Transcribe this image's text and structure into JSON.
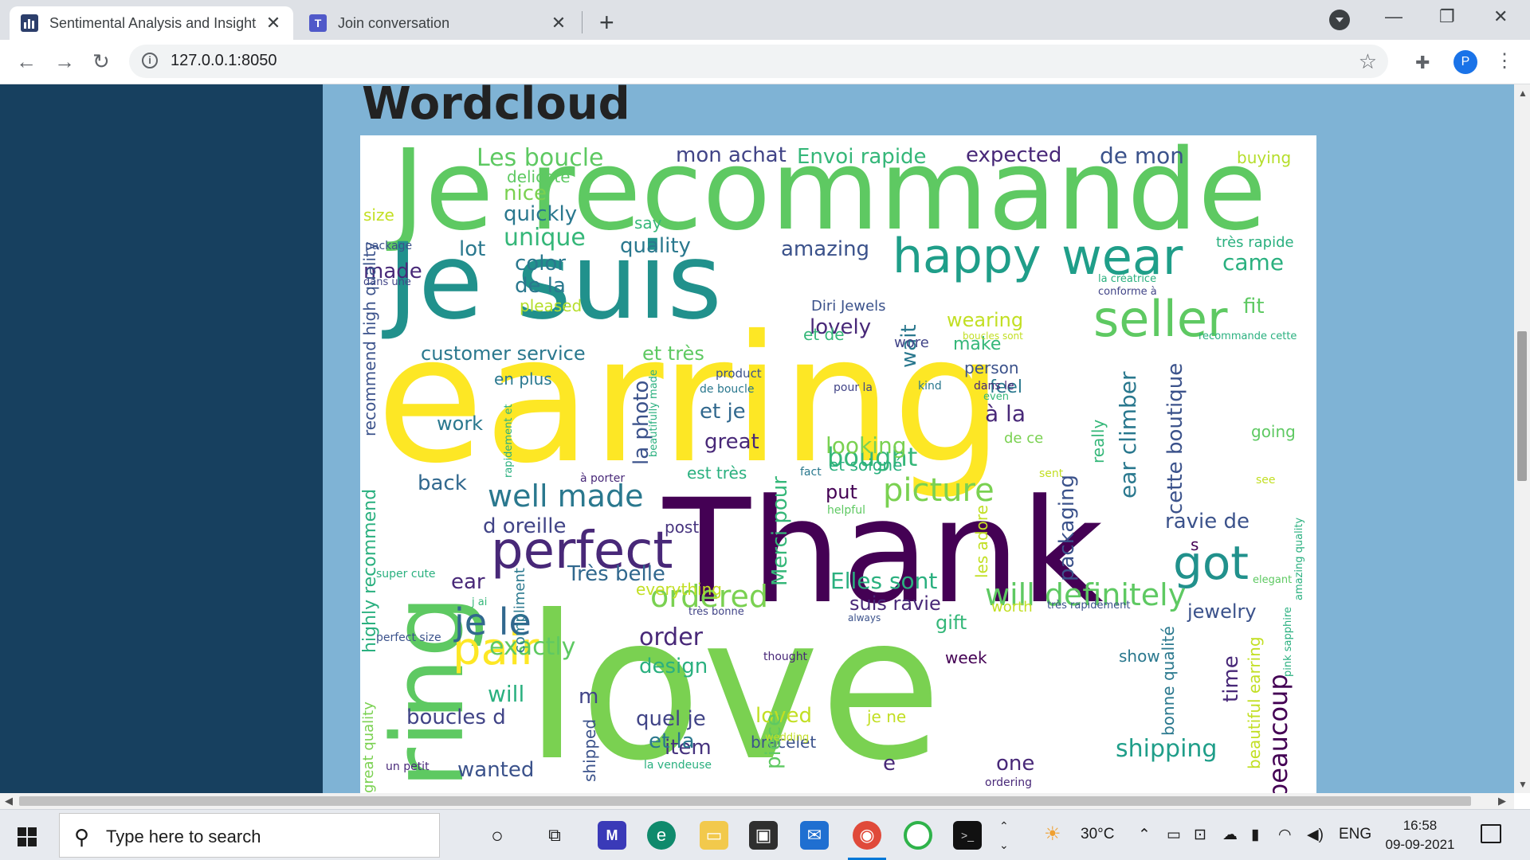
{
  "browser": {
    "tabs": [
      {
        "title": "Sentimental Analysis and Insights",
        "icon": "dash-app-icon"
      },
      {
        "title": "Join conversation",
        "icon": "teams-icon"
      }
    ],
    "url": "127.0.0.1:8050"
  },
  "page": {
    "heading": "Wordcloud",
    "colors": {
      "sidebar": "#17405f",
      "background": "#7fb3d5",
      "cloud_bg": "#ffffff"
    }
  },
  "wordcloud": {
    "words": [
      "Je recommande",
      "Je suis",
      "earring",
      "Thank",
      "love",
      "ring",
      "seller",
      "happy",
      "wear",
      "perfect",
      "pair",
      "got",
      "picture",
      "well made",
      "will definitely",
      "je le",
      "ordered",
      "exactly",
      "order",
      "design",
      "loved",
      "bracelet",
      "item",
      "shipping",
      "beaucoup",
      "Merci pour",
      "piece",
      "bought",
      "great",
      "looking",
      "et je",
      "la photo",
      "wait",
      "work",
      "back",
      "d oreille",
      "post",
      "Très belle",
      "everything",
      "ear",
      "customer service",
      "et très",
      "lovely",
      "Diri Jewels",
      "wearing",
      "make",
      "wore",
      "person",
      "feel",
      "fit",
      "came",
      "très rapide",
      "buying",
      "de mon",
      "expected",
      "Envoi rapide",
      "mon achat",
      "Les boucle",
      "delicate",
      "nice",
      "quickly",
      "unique",
      "quality",
      "amazing",
      "lot",
      "color",
      "de la",
      "pleased",
      "made",
      "size",
      "say",
      "package",
      "dans une",
      "la créatrice",
      "conforme à",
      "boucles sont",
      "recommande cette",
      "et de",
      "product",
      "de boucle",
      "pour la",
      "kind",
      "dans le",
      "even",
      "à la",
      "de ce",
      "going",
      "et soigné",
      "est très",
      "fact",
      "put",
      "helpful",
      "sent",
      "see",
      "cette boutique",
      "ear climber",
      "really",
      "packaging",
      "les adore",
      "ravie de",
      "s",
      "Elles sont",
      "suis ravie",
      "worth",
      "très rapidement",
      "jewelry",
      "gift",
      "always",
      "très bonne",
      "week",
      "thought",
      "show",
      "time",
      "beautiful earring",
      "pink sapphire",
      "amazing quality",
      "elegant",
      "bonne qualité",
      "je ne",
      "wedding",
      "la vendeuse",
      "one",
      "ordering",
      "e",
      "quel je",
      "et la",
      "m",
      "shipped",
      "compliment",
      "will",
      "boucles d",
      "wanted",
      "un petit",
      "great quality",
      "highly recommend",
      "perfect size",
      "j ai",
      "super cute",
      "recommend high quality",
      "en plus",
      "beautifully made",
      "rapidement et",
      "à porter"
    ]
  },
  "taskbar": {
    "search_placeholder": "Type here to search",
    "weather": "30°C",
    "language": "ENG",
    "time": "16:58",
    "date": "09-09-2021",
    "profile_initial": "P"
  }
}
